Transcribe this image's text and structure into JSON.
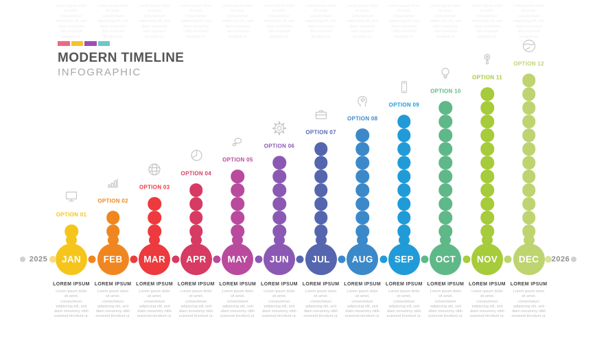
{
  "header": {
    "title": "MODERN TIMELINE",
    "subtitle": "INFOGRAPHIC",
    "bar_colors": [
      "#ec6a80",
      "#f5c526",
      "#9b4fb5",
      "#6fc6c8"
    ]
  },
  "years": {
    "start": "2025",
    "end": "2026"
  },
  "axis": {
    "end_dot_color": "#d0d0d0",
    "start_tint_dot_color": "#f7db7e",
    "end_tint_dot_color": "#d5e39c"
  },
  "months": [
    {
      "label": "JAN",
      "option": "OPTION 01",
      "color": "#f5c51c",
      "icon": "monitor-icon",
      "beads": 1
    },
    {
      "label": "FEB",
      "option": "OPTION 02",
      "color": "#f0861f",
      "icon": "bar-chart-icon",
      "beads": 2
    },
    {
      "label": "MAR",
      "option": "OPTION 03",
      "color": "#ec3a3e",
      "icon": "globe-grid-icon",
      "beads": 3
    },
    {
      "label": "APR",
      "option": "OPTION 04",
      "color": "#d73a62",
      "icon": "pie-chart-icon",
      "beads": 4
    },
    {
      "label": "MAY",
      "option": "OPTION 05",
      "color": "#b94a9d",
      "icon": "speech-bubbles-icon",
      "beads": 5
    },
    {
      "label": "JUN",
      "option": "OPTION 06",
      "color": "#8b59b4",
      "icon": "gear-icon",
      "beads": 6
    },
    {
      "label": "JUL",
      "option": "OPTION 07",
      "color": "#5566af",
      "icon": "briefcase-icon",
      "beads": 7
    },
    {
      "label": "AUG",
      "option": "OPTION 08",
      "color": "#3c89ca",
      "icon": "head-gear-icon",
      "beads": 8
    },
    {
      "label": "SEP",
      "option": "OPTION 09",
      "color": "#219bd8",
      "icon": "smartphone-icon",
      "beads": 9
    },
    {
      "label": "OCT",
      "option": "OPTION 10",
      "color": "#5fb888",
      "icon": "lightbulb-icon",
      "beads": 10
    },
    {
      "label": "NOV",
      "option": "OPTION 11",
      "color": "#a6cb3b",
      "icon": "key-icon",
      "beads": 11
    },
    {
      "label": "DEC",
      "option": "OPTION 12",
      "color": "#bed470",
      "icon": "globe-earth-icon",
      "beads": 12
    }
  ],
  "card": {
    "title": "LOREM IPSUM",
    "body": "Lorem ipsum dolor sit amet, consectetuer adipiscing elit, sed diam nonummy nibh euismod tincidunt ut."
  },
  "top_note": "Lorem ipsum dolor sit amet, consectetuer adipiscing elit, sed diam nonummy nibh euismod tincidunt ut."
}
